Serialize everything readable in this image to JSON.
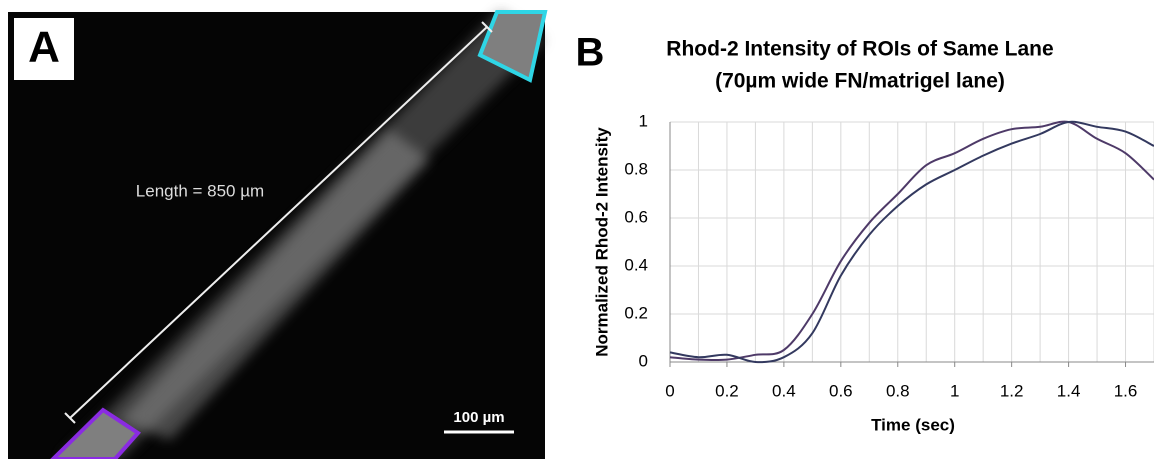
{
  "panel_a": {
    "label": "A",
    "measurement": "Length = 850 µm",
    "scale_bar": "100 µm"
  },
  "chart_data": {
    "type": "line",
    "panel_label": "B",
    "title": "Rhod-2 Intensity of ROIs of Same Lane",
    "subtitle": "(70µm wide FN/matrigel lane)",
    "x_label": "Time (sec)",
    "y_label": "Normalized Rhod-2 Intensity",
    "x": [
      0,
      0.1,
      0.2,
      0.3,
      0.4,
      0.5,
      0.6,
      0.7,
      0.8,
      0.9,
      1.0,
      1.1,
      1.2,
      1.3,
      1.4,
      1.5,
      1.6,
      1.7
    ],
    "series": [
      {
        "color": "#4e3a68",
        "values": [
          0.02,
          0.01,
          0.01,
          0.03,
          0.05,
          0.2,
          0.42,
          0.58,
          0.7,
          0.82,
          0.87,
          0.93,
          0.97,
          0.98,
          1.0,
          0.93,
          0.87,
          0.76
        ]
      },
      {
        "color": "#33395f",
        "values": [
          0.04,
          0.02,
          0.03,
          0.0,
          0.02,
          0.12,
          0.36,
          0.53,
          0.65,
          0.74,
          0.8,
          0.86,
          0.91,
          0.95,
          1.0,
          0.98,
          0.96,
          0.9
        ]
      }
    ],
    "xlim": [
      0,
      1.7
    ],
    "ylim": [
      0,
      1
    ],
    "xticks": [
      0,
      0.2,
      0.4,
      0.6,
      0.8,
      1,
      1.2,
      1.4,
      1.6
    ],
    "yticks": [
      0,
      0.2,
      0.4,
      0.6,
      0.8,
      1
    ],
    "grid": true,
    "xgrid_step": 0.1
  }
}
